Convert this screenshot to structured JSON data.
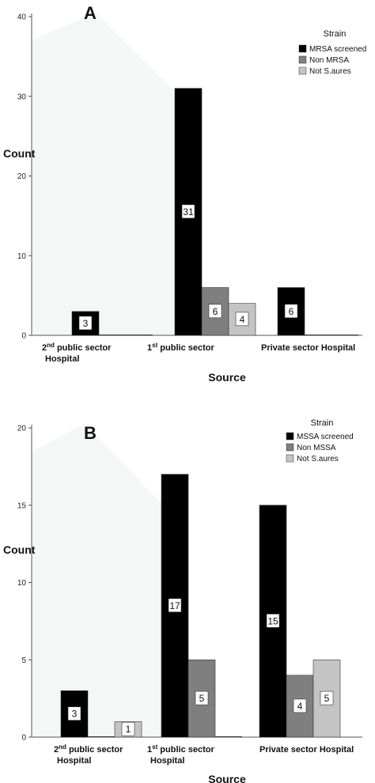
{
  "chart_data": [
    {
      "type": "bar",
      "panel": "A",
      "categories": [
        "2nd public sector Hospital",
        "1st public sector",
        "Private sector Hospital"
      ],
      "category_labels": [
        {
          "line1": "2",
          "sup": "nd",
          "rest": " public sector",
          "line2": "Hospital"
        },
        {
          "line1": "1",
          "sup": "st",
          "rest": " public sector",
          "line2": ""
        },
        {
          "line1": "Private sector Hospital",
          "sup": "",
          "rest": "",
          "line2": ""
        }
      ],
      "series": [
        {
          "name": "MRSA screened",
          "color": "#000000",
          "values": [
            3,
            31,
            6
          ]
        },
        {
          "name": "Non MRSA",
          "color": "#7f7f7f",
          "values": [
            0,
            6,
            0
          ]
        },
        {
          "name": "Not S.aures",
          "color": "#c4c4c4",
          "values": [
            0,
            4,
            0
          ]
        }
      ],
      "xlabel": "Source",
      "ylabel": "Count",
      "ylim": [
        0,
        40
      ],
      "yticks": [
        0,
        10,
        20,
        30,
        40
      ],
      "legend_title": "Strain",
      "legend": "top-right"
    },
    {
      "type": "bar",
      "panel": "B",
      "categories": [
        "2nd public sector Hospital",
        "1st public sector Hospital",
        "Private sector Hospital"
      ],
      "category_labels": [
        {
          "line1": "2",
          "sup": "nd",
          "rest": " public sector",
          "line2": "Hospital"
        },
        {
          "line1": "1",
          "sup": "st",
          "rest": " public sector",
          "line2": "Hospital"
        },
        {
          "line1": "Private sector Hospital",
          "sup": "",
          "rest": "",
          "line2": ""
        }
      ],
      "series": [
        {
          "name": "MSSA screened",
          "color": "#000000",
          "values": [
            3,
            17,
            15
          ]
        },
        {
          "name": "Non MSSA",
          "color": "#7f7f7f",
          "values": [
            0,
            5,
            4
          ]
        },
        {
          "name": "Not S.aures",
          "color": "#c4c4c4",
          "values": [
            1,
            0,
            5
          ]
        }
      ],
      "xlabel": "Source",
      "ylabel": "Count",
      "ylim": [
        0,
        20
      ],
      "yticks": [
        0,
        5,
        10,
        15,
        20
      ],
      "legend_title": "Strain",
      "legend": "top-right"
    }
  ]
}
